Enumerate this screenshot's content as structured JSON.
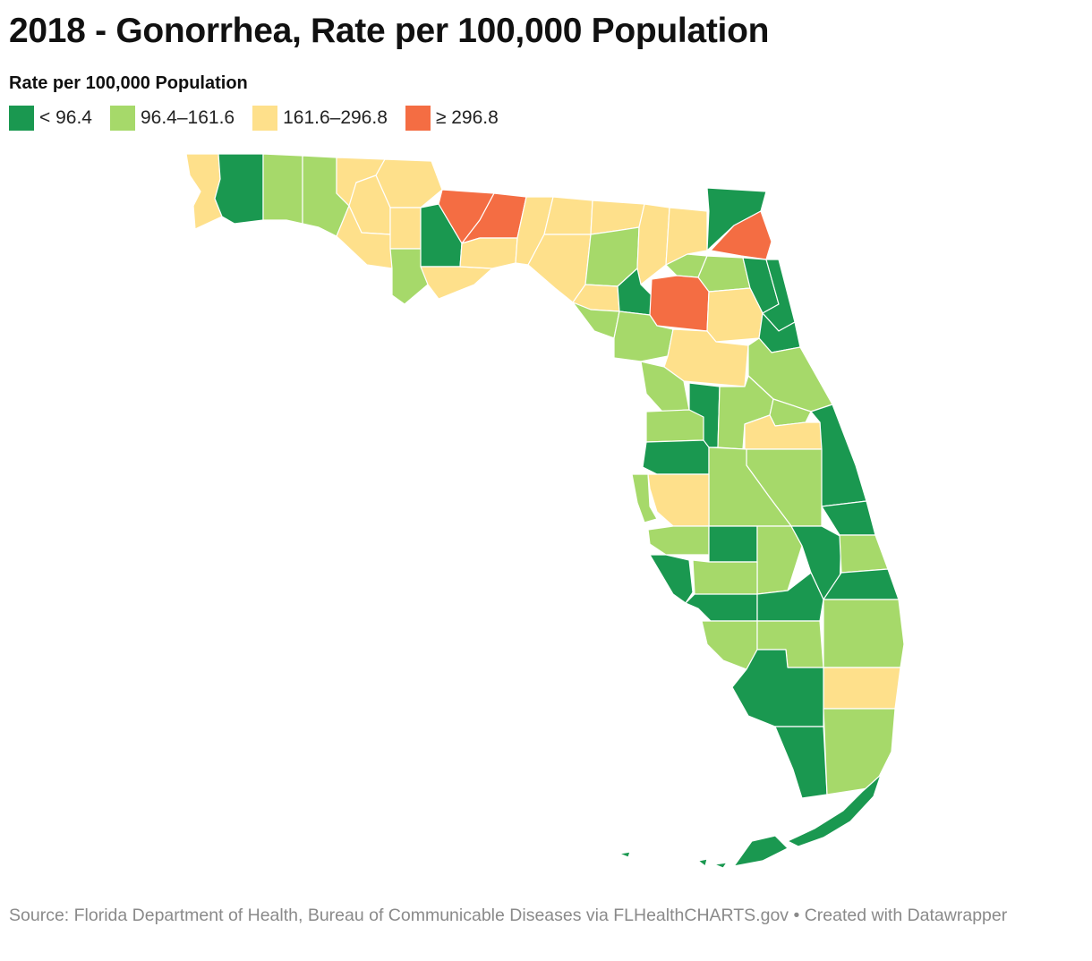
{
  "title": "2018 - Gonorrhea, Rate per 100,000 Population",
  "legend": {
    "title": "Rate per 100,000 Population",
    "items": [
      {
        "label": "< 96.4",
        "color": "#1a9850"
      },
      {
        "label": "96.4–161.6",
        "color": "#a6d96a"
      },
      {
        "label": "161.6–296.8",
        "color": "#fee08b"
      },
      {
        "label": "≥ 296.8",
        "color": "#f46d43"
      }
    ]
  },
  "source": "Source: Florida Department of Health, Bureau of Communicable Diseases via FLHealthCHARTS.gov • Created with Datawrapper",
  "map": {
    "region": "Florida counties",
    "color_classes": {
      "c1": "#1a9850",
      "c2": "#a6d96a",
      "c3": "#fee08b",
      "c4": "#f46d43"
    }
  }
}
